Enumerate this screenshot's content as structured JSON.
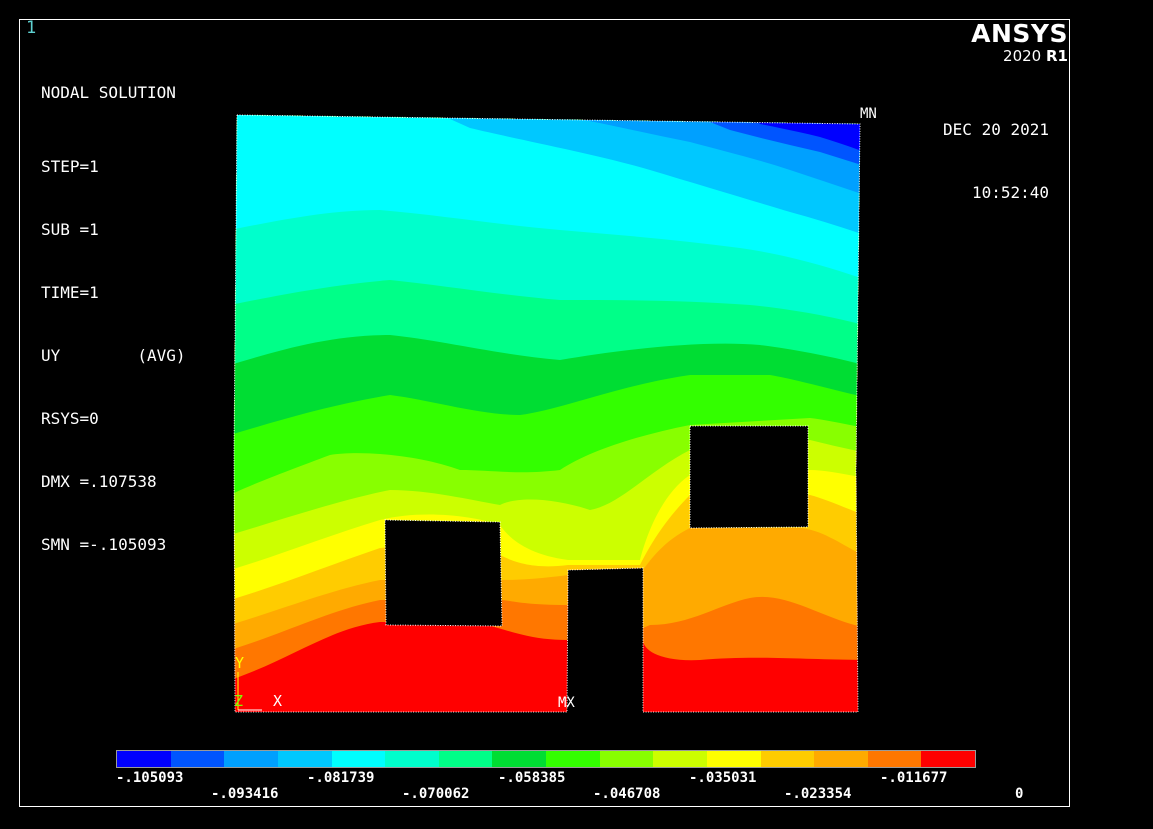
{
  "window_number": "1",
  "info": {
    "title": "NODAL SOLUTION",
    "lines": [
      "STEP=1",
      "SUB =1",
      "TIME=1",
      "UY        (AVG)",
      "RSYS=0",
      "DMX =.107538",
      "SMN =-.105093"
    ]
  },
  "brand": {
    "name": "ANSYS",
    "version_year": "2020",
    "version_rel": "R1"
  },
  "datetime": {
    "date": "DEC 20 2021",
    "time": "10:52:40"
  },
  "markers": {
    "min": "MN",
    "max": "MX"
  },
  "axes": {
    "y": "Y",
    "x": "X",
    "z": "Z"
  },
  "legend": {
    "colors": [
      "#0000ff",
      "#0055ff",
      "#00a0ff",
      "#00c8ff",
      "#00ffff",
      "#00ffcc",
      "#00ff88",
      "#00dd33",
      "#33ff00",
      "#88ff00",
      "#ccff00",
      "#ffff00",
      "#ffcc00",
      "#ffaa00",
      "#ff7700",
      "#ff0000"
    ],
    "top_labels": [
      "-.105093",
      "-.081739",
      "-.058385",
      "-.035031",
      "-.011677"
    ],
    "bottom_labels": [
      "-.093416",
      "-.070062",
      "-.046708",
      "-.023354",
      "0"
    ]
  }
}
